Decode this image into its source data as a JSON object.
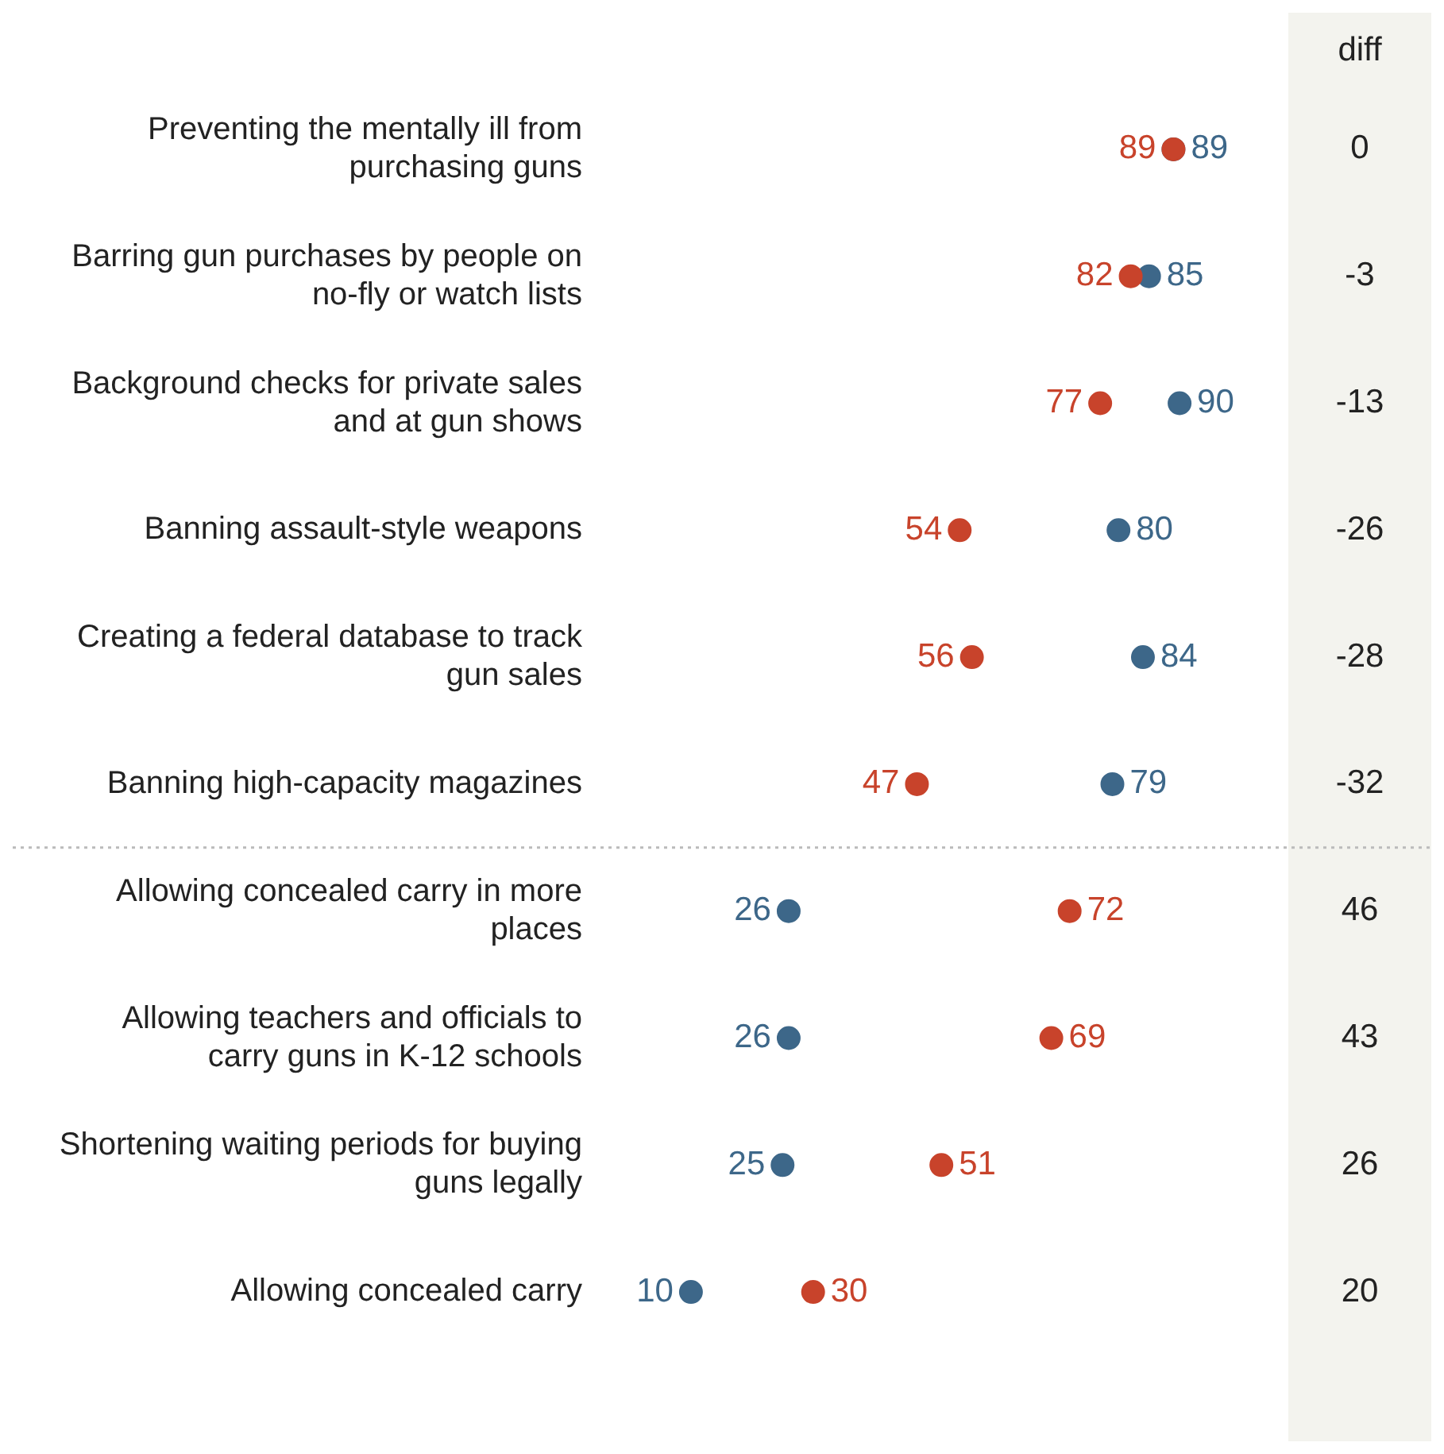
{
  "chart_data": {
    "type": "scatter",
    "orientation": "horizontal",
    "categories": [
      "Preventing the mentally ill from purchasing guns",
      "Barring gun purchases by people on no-fly or watch lists",
      "Background checks for private sales and at gun shows",
      "Banning assault-style weapons",
      "Creating a federal database to track gun sales",
      "Banning high-capacity magazines",
      "Allowing concealed carry in more places",
      "Allowing teachers and officials to carry guns in K-12 schools",
      "Shortening waiting periods for buying guns legally",
      "Allowing concealed carry"
    ],
    "series": [
      {
        "color": "#c8432b",
        "values": [
          89,
          82,
          77,
          54,
          56,
          47,
          72,
          69,
          51,
          30
        ]
      },
      {
        "color": "#3d6789",
        "values": [
          89,
          85,
          90,
          80,
          84,
          79,
          26,
          26,
          25,
          10
        ]
      }
    ],
    "tick_labels": "y",
    "marker": "circle",
    "data_labels": true,
    "annotations": [
      "diff",
      "0",
      "-3",
      "-13",
      "-26",
      "-28",
      "-32",
      "46",
      "43",
      "26",
      "20"
    ]
  }
}
